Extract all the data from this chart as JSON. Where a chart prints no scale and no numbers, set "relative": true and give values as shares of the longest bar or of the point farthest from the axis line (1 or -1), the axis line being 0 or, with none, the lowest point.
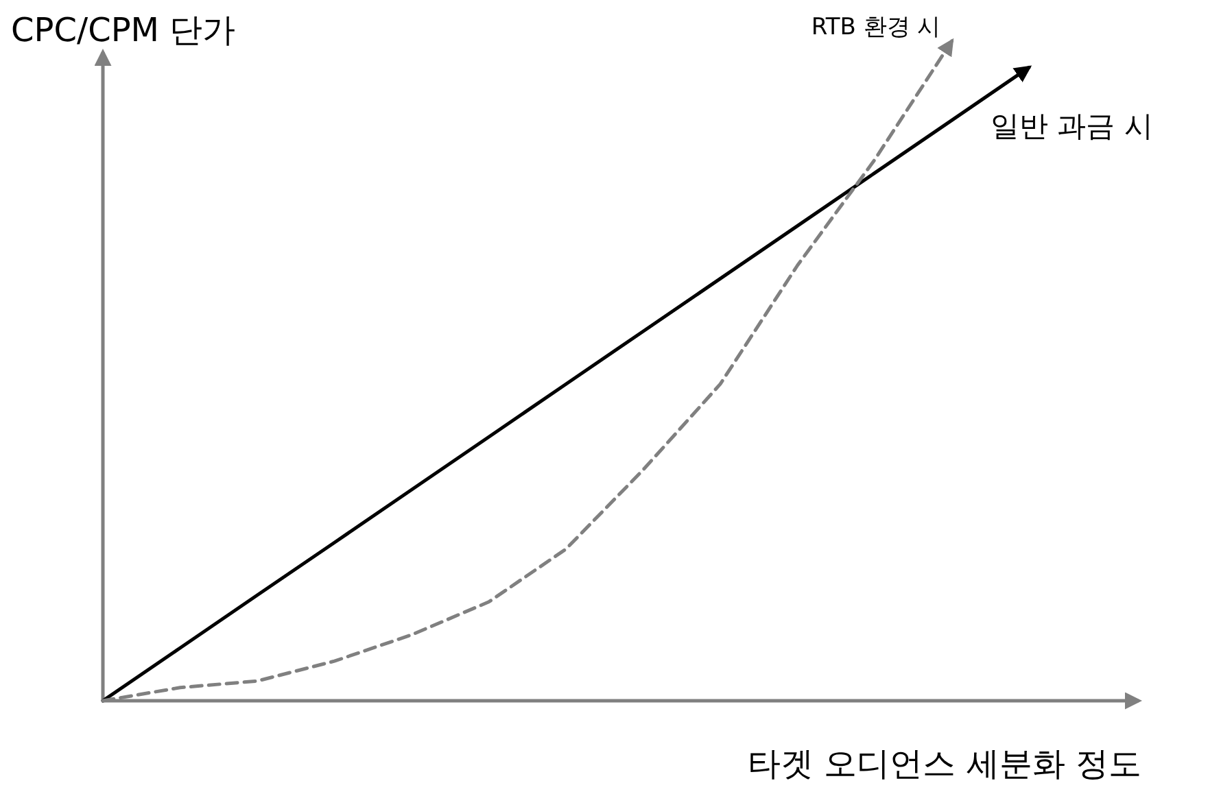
{
  "chart_data": {
    "type": "line",
    "relative": true,
    "ylabel": "CPC/CPM 단가",
    "xlabel": "타겟 오디언스 세분화 정도",
    "categories": [
      null,
      null,
      null,
      null,
      null,
      null,
      null,
      null,
      null,
      null,
      null,
      null,
      null
    ],
    "series": [
      {
        "name": "일반 과금 시",
        "color": "#000000",
        "line_style": "solid",
        "values": [
          0,
          0.08,
          0.16,
          0.24,
          0.32,
          0.4,
          0.48,
          0.56,
          0.64,
          0.72,
          0.8,
          0.88,
          0.96
        ]
      },
      {
        "name": "RTB 환경 시",
        "color": "#808080",
        "line_style": "dashed",
        "values": [
          0,
          0.02,
          0.03,
          0.06,
          0.1,
          0.15,
          0.23,
          0.35,
          0.48,
          0.66,
          0.82,
          1.0,
          null
        ]
      }
    ]
  }
}
